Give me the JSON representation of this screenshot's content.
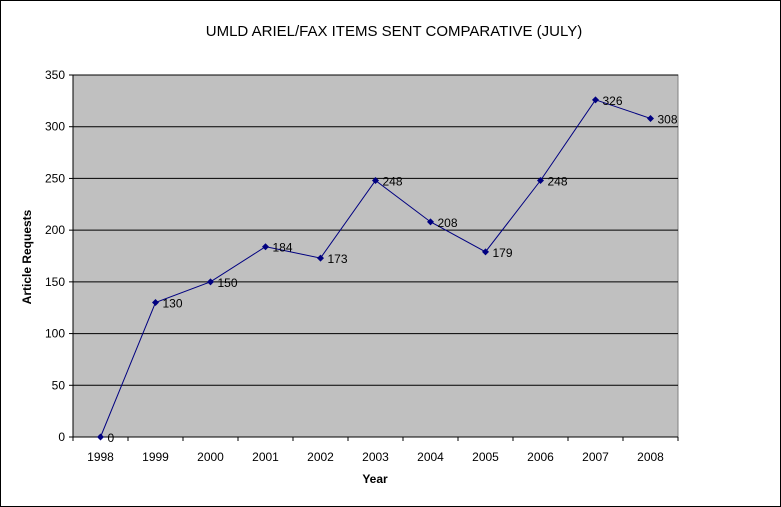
{
  "chart_data": {
    "type": "line",
    "title": "UMLD ARIEL/FAX ITEMS SENT COMPARATIVE (JULY)",
    "xlabel": "Year",
    "ylabel": "Article Requests",
    "categories": [
      "1998",
      "1999",
      "2000",
      "2001",
      "2002",
      "2003",
      "2004",
      "2005",
      "2006",
      "2007",
      "2008"
    ],
    "series": [
      {
        "values": [
          0,
          130,
          150,
          184,
          173,
          248,
          208,
          179,
          248,
          326,
          308
        ]
      }
    ],
    "ylim": [
      0,
      350
    ],
    "yticks": [
      "0",
      "50",
      "100",
      "150",
      "200",
      "250",
      "300",
      "350"
    ],
    "grid": true,
    "legend": "none",
    "colors": {
      "plot_background": "#c0c0c0",
      "line": "#000080",
      "marker": "#000080",
      "gridline": "#000000"
    }
  }
}
